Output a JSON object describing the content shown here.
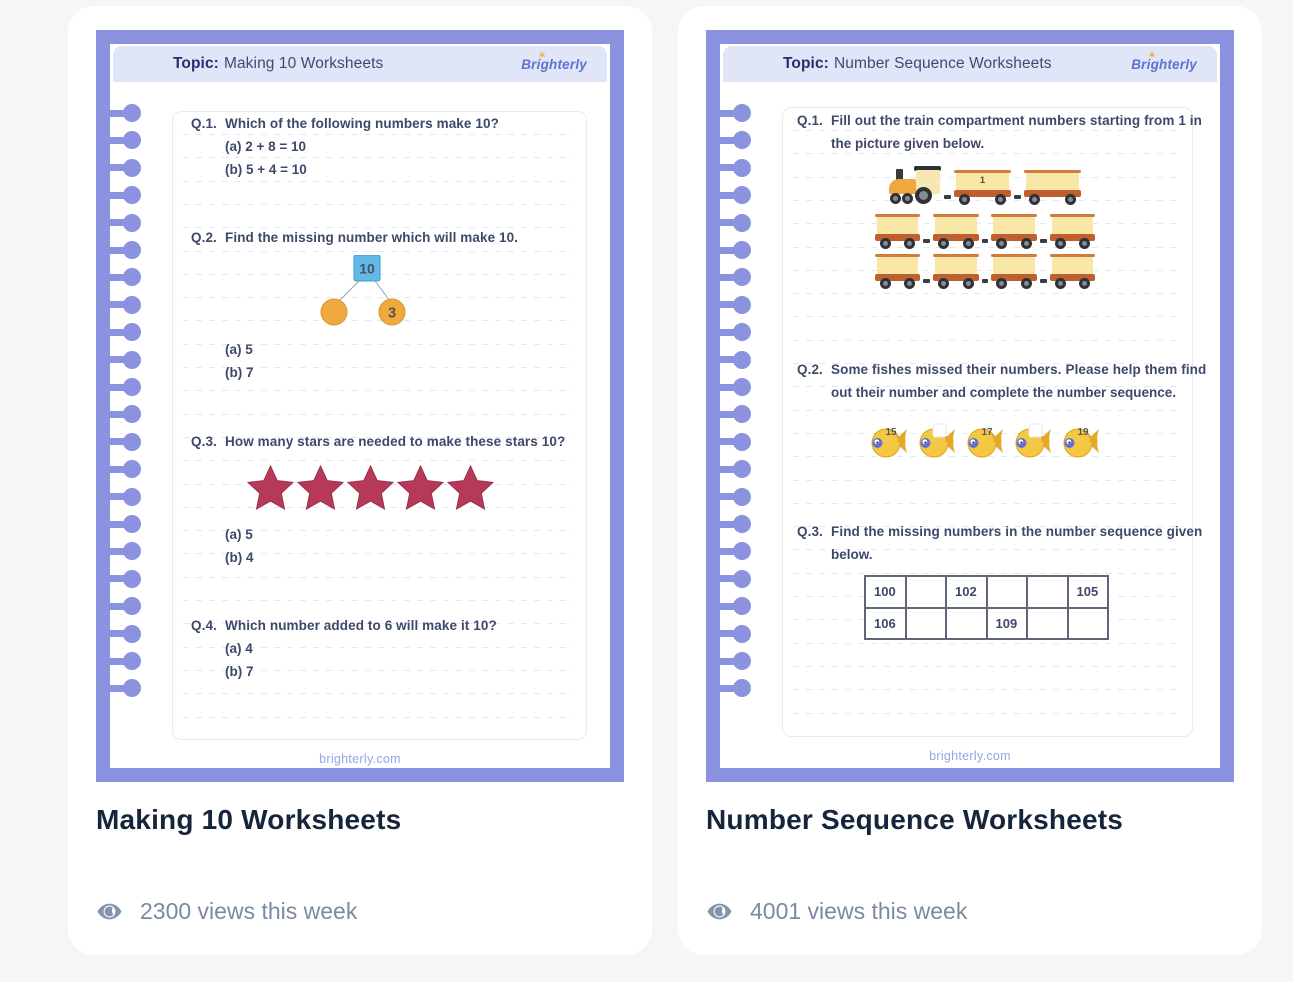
{
  "colors": {
    "page_background": "#f5f6f8",
    "frame_purple": "#8b93e0",
    "header_band": "#e0e5f8",
    "brand_blue": "#5e73d1",
    "brand_star_yellow": "#f0b43c",
    "star_red": "#b7395a",
    "bond_blue": "#62b9e6",
    "bond_orange": "#efa93f",
    "title_navy": "#16243c",
    "views_gray": "#7a8aa2"
  },
  "cards": [
    {
      "title": "Making 10 Worksheets",
      "views_text": "2300 views this week",
      "views_icon": "eye-icon",
      "sheet": {
        "topic_label": "Topic:",
        "topic": "Making 10 Worksheets",
        "brand": "Brighterly",
        "footer": "brighterly.com",
        "q1": {
          "label": "Q.1.",
          "text": "Which of the following numbers make 10?",
          "options": [
            "(a) 2 + 8 = 10",
            "(b) 5 + 4 = 10"
          ]
        },
        "q2": {
          "label": "Q.2.",
          "text": "Find the missing number which will make 10.",
          "bond": {
            "total": "10",
            "left_value": "",
            "right_value": "3"
          },
          "options": [
            "(a) 5",
            "(b) 7"
          ]
        },
        "q3": {
          "label": "Q.3.",
          "text": "How many stars are needed to make these stars 10?",
          "stars": 5,
          "options": [
            "(a) 5",
            "(b) 4"
          ]
        },
        "q4": {
          "label": "Q.4.",
          "text": "Which number added to 6 will make it 10?",
          "options": [
            "(a) 4",
            "(b) 7"
          ]
        }
      }
    },
    {
      "title": "Number Sequence Worksheets",
      "views_text": "4001 views this week",
      "views_icon": "eye-icon",
      "sheet": {
        "topic_label": "Topic:",
        "topic": "Number Sequence Worksheets",
        "brand": "Brighterly",
        "footer": "brighterly.com",
        "q1": {
          "label": "Q.1.",
          "line1": "Fill out the train compartment numbers starting from 1 in",
          "line2": "the picture given below.",
          "train_rows": [
            [
              "engine",
              "wagon#1",
              "wagon"
            ],
            [
              "wagon",
              "wagon",
              "wagon",
              "wagon"
            ],
            [
              "wagon",
              "wagon",
              "wagon",
              "wagon"
            ]
          ]
        },
        "q2": {
          "label": "Q.2.",
          "line1": "Some fishes missed their numbers. Please help them find",
          "line2": "out their number and complete the number sequence.",
          "fish_numbers": [
            "15",
            "",
            "17",
            "",
            "19"
          ]
        },
        "q3": {
          "label": "Q.3.",
          "line1": "Find the missing numbers in the number sequence given",
          "line2": "below.",
          "table": [
            [
              "100",
              "",
              "102",
              "",
              "",
              "105"
            ],
            [
              "106",
              "",
              "",
              "109",
              "",
              ""
            ]
          ]
        }
      }
    }
  ]
}
